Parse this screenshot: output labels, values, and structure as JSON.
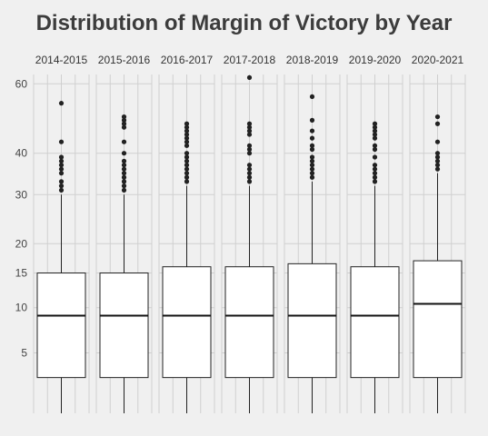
{
  "chart_data": {
    "type": "boxplot",
    "title": "Distribution of Margin of Victory by Year",
    "facets": [
      "2014-2015",
      "2015-2016",
      "2016-2017",
      "2017-2018",
      "2018-2019",
      "2019-2020",
      "2020-2021"
    ],
    "yticks": [
      5,
      10,
      15,
      20,
      30,
      40,
      60
    ],
    "ylim": [
      1,
      63
    ],
    "y_scale": "sqrt",
    "grid": true,
    "boxes": [
      {
        "facet": "2014-2015",
        "whisker_low": 1,
        "q1": 3,
        "median": 9,
        "q3": 15,
        "whisker_high": 30,
        "outliers": [
          31,
          32,
          33,
          35,
          36,
          37,
          38,
          39,
          43,
          54
        ]
      },
      {
        "facet": "2015-2016",
        "whisker_low": 1,
        "q1": 3,
        "median": 9,
        "q3": 15,
        "whisker_high": 30,
        "outliers": [
          31,
          32,
          33,
          34,
          35,
          36,
          37,
          38,
          40,
          43,
          47,
          48,
          49,
          50
        ]
      },
      {
        "facet": "2016-2017",
        "whisker_low": 1,
        "q1": 3,
        "median": 9,
        "q3": 16,
        "whisker_high": 32,
        "outliers": [
          33,
          34,
          35,
          36,
          37,
          38,
          39,
          40,
          42,
          43,
          44,
          45,
          46,
          47,
          48
        ]
      },
      {
        "facet": "2017-2018",
        "whisker_low": 1,
        "q1": 3,
        "median": 9,
        "q3": 16,
        "whisker_high": 32,
        "outliers": [
          33,
          34,
          35,
          36,
          37,
          40,
          41,
          42,
          45,
          46,
          47,
          48,
          62
        ]
      },
      {
        "facet": "2018-2019",
        "whisker_low": 1,
        "q1": 3,
        "median": 9,
        "q3": 16.5,
        "whisker_high": 33,
        "outliers": [
          34,
          35,
          36,
          37,
          38,
          39,
          41,
          42,
          44,
          46,
          49,
          56
        ]
      },
      {
        "facet": "2019-2020",
        "whisker_low": 1,
        "q1": 3,
        "median": 9,
        "q3": 16,
        "whisker_high": 32,
        "outliers": [
          33,
          34,
          35,
          36,
          37,
          39,
          41,
          42,
          44,
          45,
          46,
          47,
          48
        ]
      },
      {
        "facet": "2020-2021",
        "whisker_low": 1,
        "q1": 3,
        "median": 10.5,
        "q3": 17,
        "whisker_high": 35,
        "outliers": [
          36,
          37,
          38,
          39,
          40,
          43,
          48,
          50
        ]
      }
    ]
  }
}
